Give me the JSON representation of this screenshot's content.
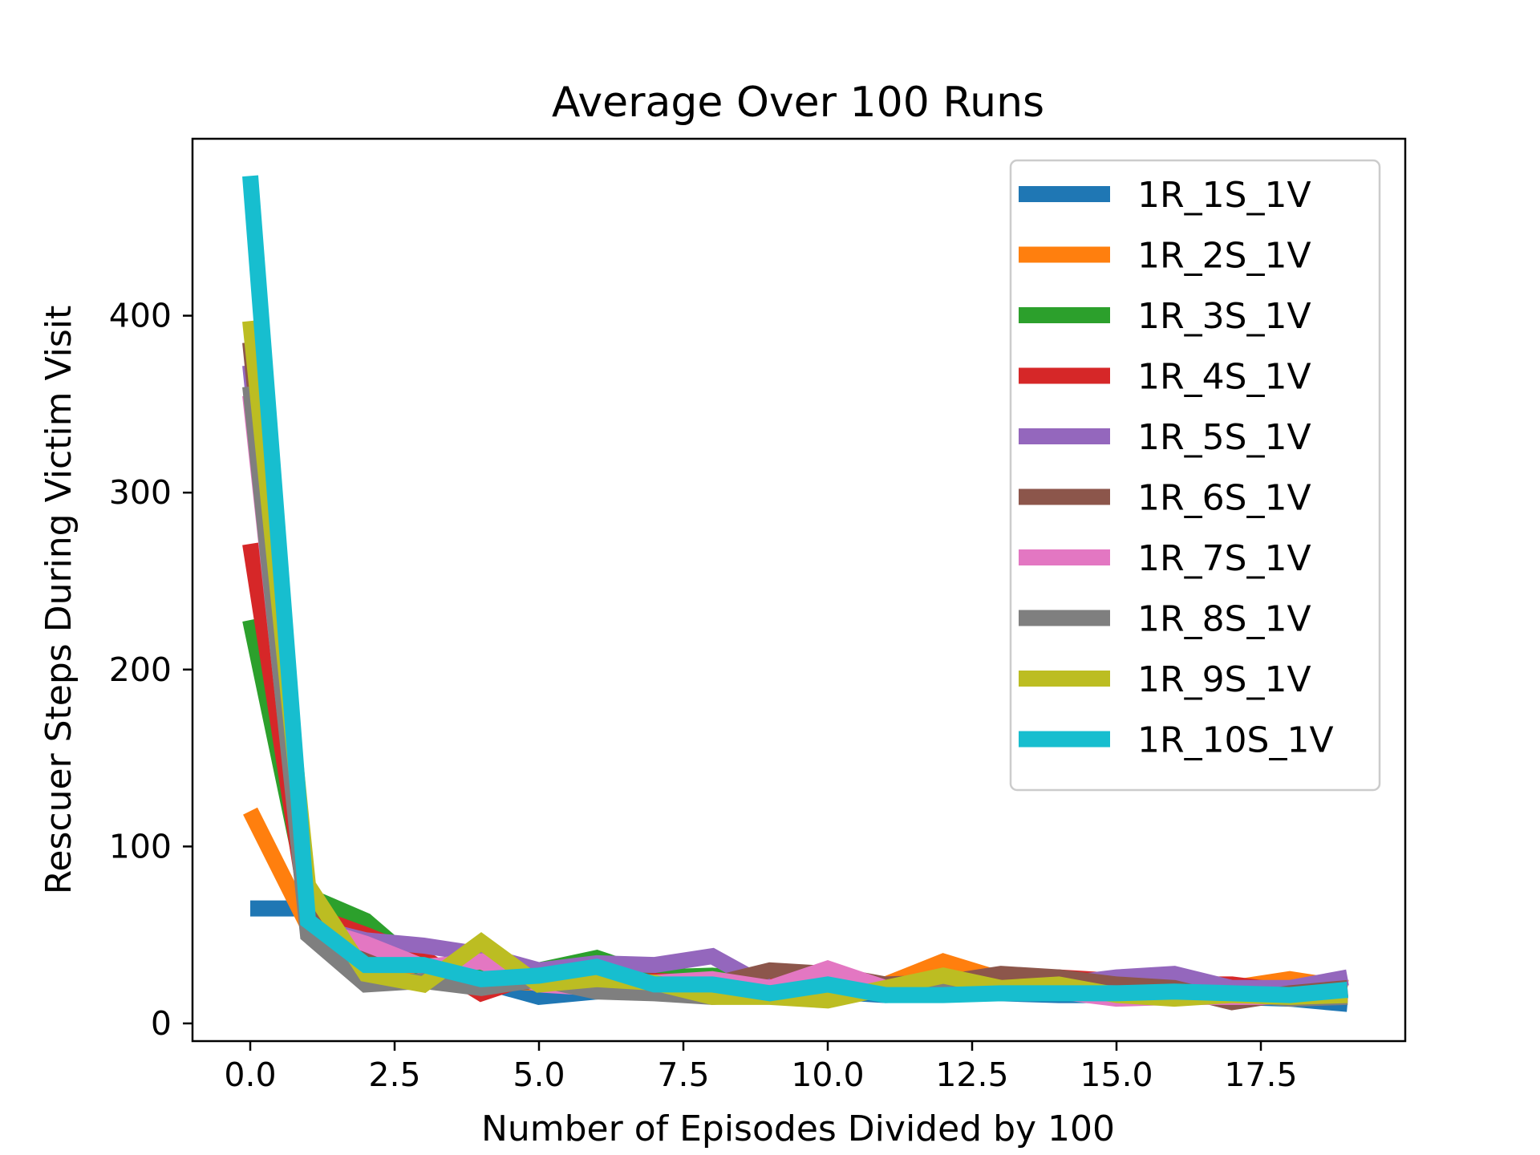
{
  "chart_data": {
    "type": "line",
    "title": "Average Over 100 Runs",
    "xlabel": "Number of Episodes Divided by 100",
    "ylabel": "Rescuer Steps During Victim Visit",
    "xlim": [
      -1.0,
      20.0
    ],
    "ylim": [
      -10,
      500
    ],
    "xticks": [
      0.0,
      2.5,
      5.0,
      7.5,
      10.0,
      12.5,
      15.0,
      17.5
    ],
    "xtick_labels": [
      "0.0",
      "2.5",
      "5.0",
      "7.5",
      "10.0",
      "12.5",
      "15.0",
      "17.5"
    ],
    "yticks": [
      0,
      100,
      200,
      300,
      400
    ],
    "ytick_labels": [
      "0",
      "100",
      "200",
      "300",
      "400"
    ],
    "grid": false,
    "legend_position": "top-right",
    "x": [
      0,
      1,
      2,
      3,
      4,
      5,
      6,
      7,
      8,
      9,
      10,
      11,
      12,
      13,
      14,
      15,
      16,
      17,
      18,
      19
    ],
    "series": [
      {
        "name": "1R_1S_1V",
        "color": "#1f77b4",
        "values": [
          65,
          65,
          25,
          25,
          24,
          15,
          18,
          20,
          22,
          20,
          18,
          16,
          17,
          17,
          16,
          16,
          16,
          15,
          14,
          11
        ]
      },
      {
        "name": "1R_2S_1V",
        "color": "#ff7f0e",
        "values": [
          120,
          55,
          30,
          28,
          24,
          23,
          24,
          22,
          23,
          22,
          22,
          22,
          35,
          25,
          23,
          21,
          22,
          20,
          25,
          20
        ]
      },
      {
        "name": "1R_3S_1V",
        "color": "#2ca02c",
        "values": [
          228,
          72,
          58,
          30,
          27,
          30,
          37,
          26,
          27,
          25,
          22,
          20,
          21,
          20,
          20,
          19,
          18,
          18,
          17,
          17
        ]
      },
      {
        "name": "1R_4S_1V",
        "color": "#d62728",
        "values": [
          271,
          62,
          50,
          37,
          17,
          28,
          22,
          24,
          23,
          22,
          20,
          20,
          22,
          23,
          26,
          24,
          22,
          22,
          18,
          18
        ]
      },
      {
        "name": "1R_5S_1V",
        "color": "#9467bd",
        "values": [
          372,
          55,
          47,
          44,
          39,
          30,
          34,
          33,
          38,
          20,
          21,
          20,
          20,
          21,
          22,
          26,
          28,
          20,
          20,
          26
        ]
      },
      {
        "name": "1R_6S_1V",
        "color": "#8c564b",
        "values": [
          385,
          65,
          38,
          33,
          22,
          24,
          20,
          22,
          22,
          30,
          28,
          22,
          23,
          28,
          26,
          22,
          20,
          12,
          17,
          20
        ]
      },
      {
        "name": "1R_7S_1V",
        "color": "#e377c2",
        "values": [
          355,
          55,
          45,
          32,
          35,
          22,
          20,
          23,
          25,
          20,
          31,
          20,
          20,
          18,
          18,
          14,
          15,
          15,
          15,
          17
        ]
      },
      {
        "name": "1R_8S_1V",
        "color": "#7f7f7f",
        "values": [
          360,
          50,
          22,
          24,
          20,
          25,
          18,
          17,
          15,
          17,
          17,
          18,
          18,
          19,
          18,
          17,
          17,
          17,
          14,
          15
        ]
      },
      {
        "name": "1R_9S_1V",
        "color": "#bcbd22",
        "values": [
          397,
          78,
          28,
          22,
          46,
          22,
          25,
          23,
          15,
          15,
          13,
          20,
          27,
          20,
          22,
          16,
          14,
          16,
          15,
          16
        ]
      },
      {
        "name": "1R_10S_1V",
        "color": "#17becf",
        "values": [
          479,
          58,
          33,
          33,
          25,
          27,
          32,
          22,
          22,
          17,
          22,
          16,
          16,
          17,
          17,
          17,
          18,
          17,
          16,
          19
        ]
      }
    ]
  }
}
